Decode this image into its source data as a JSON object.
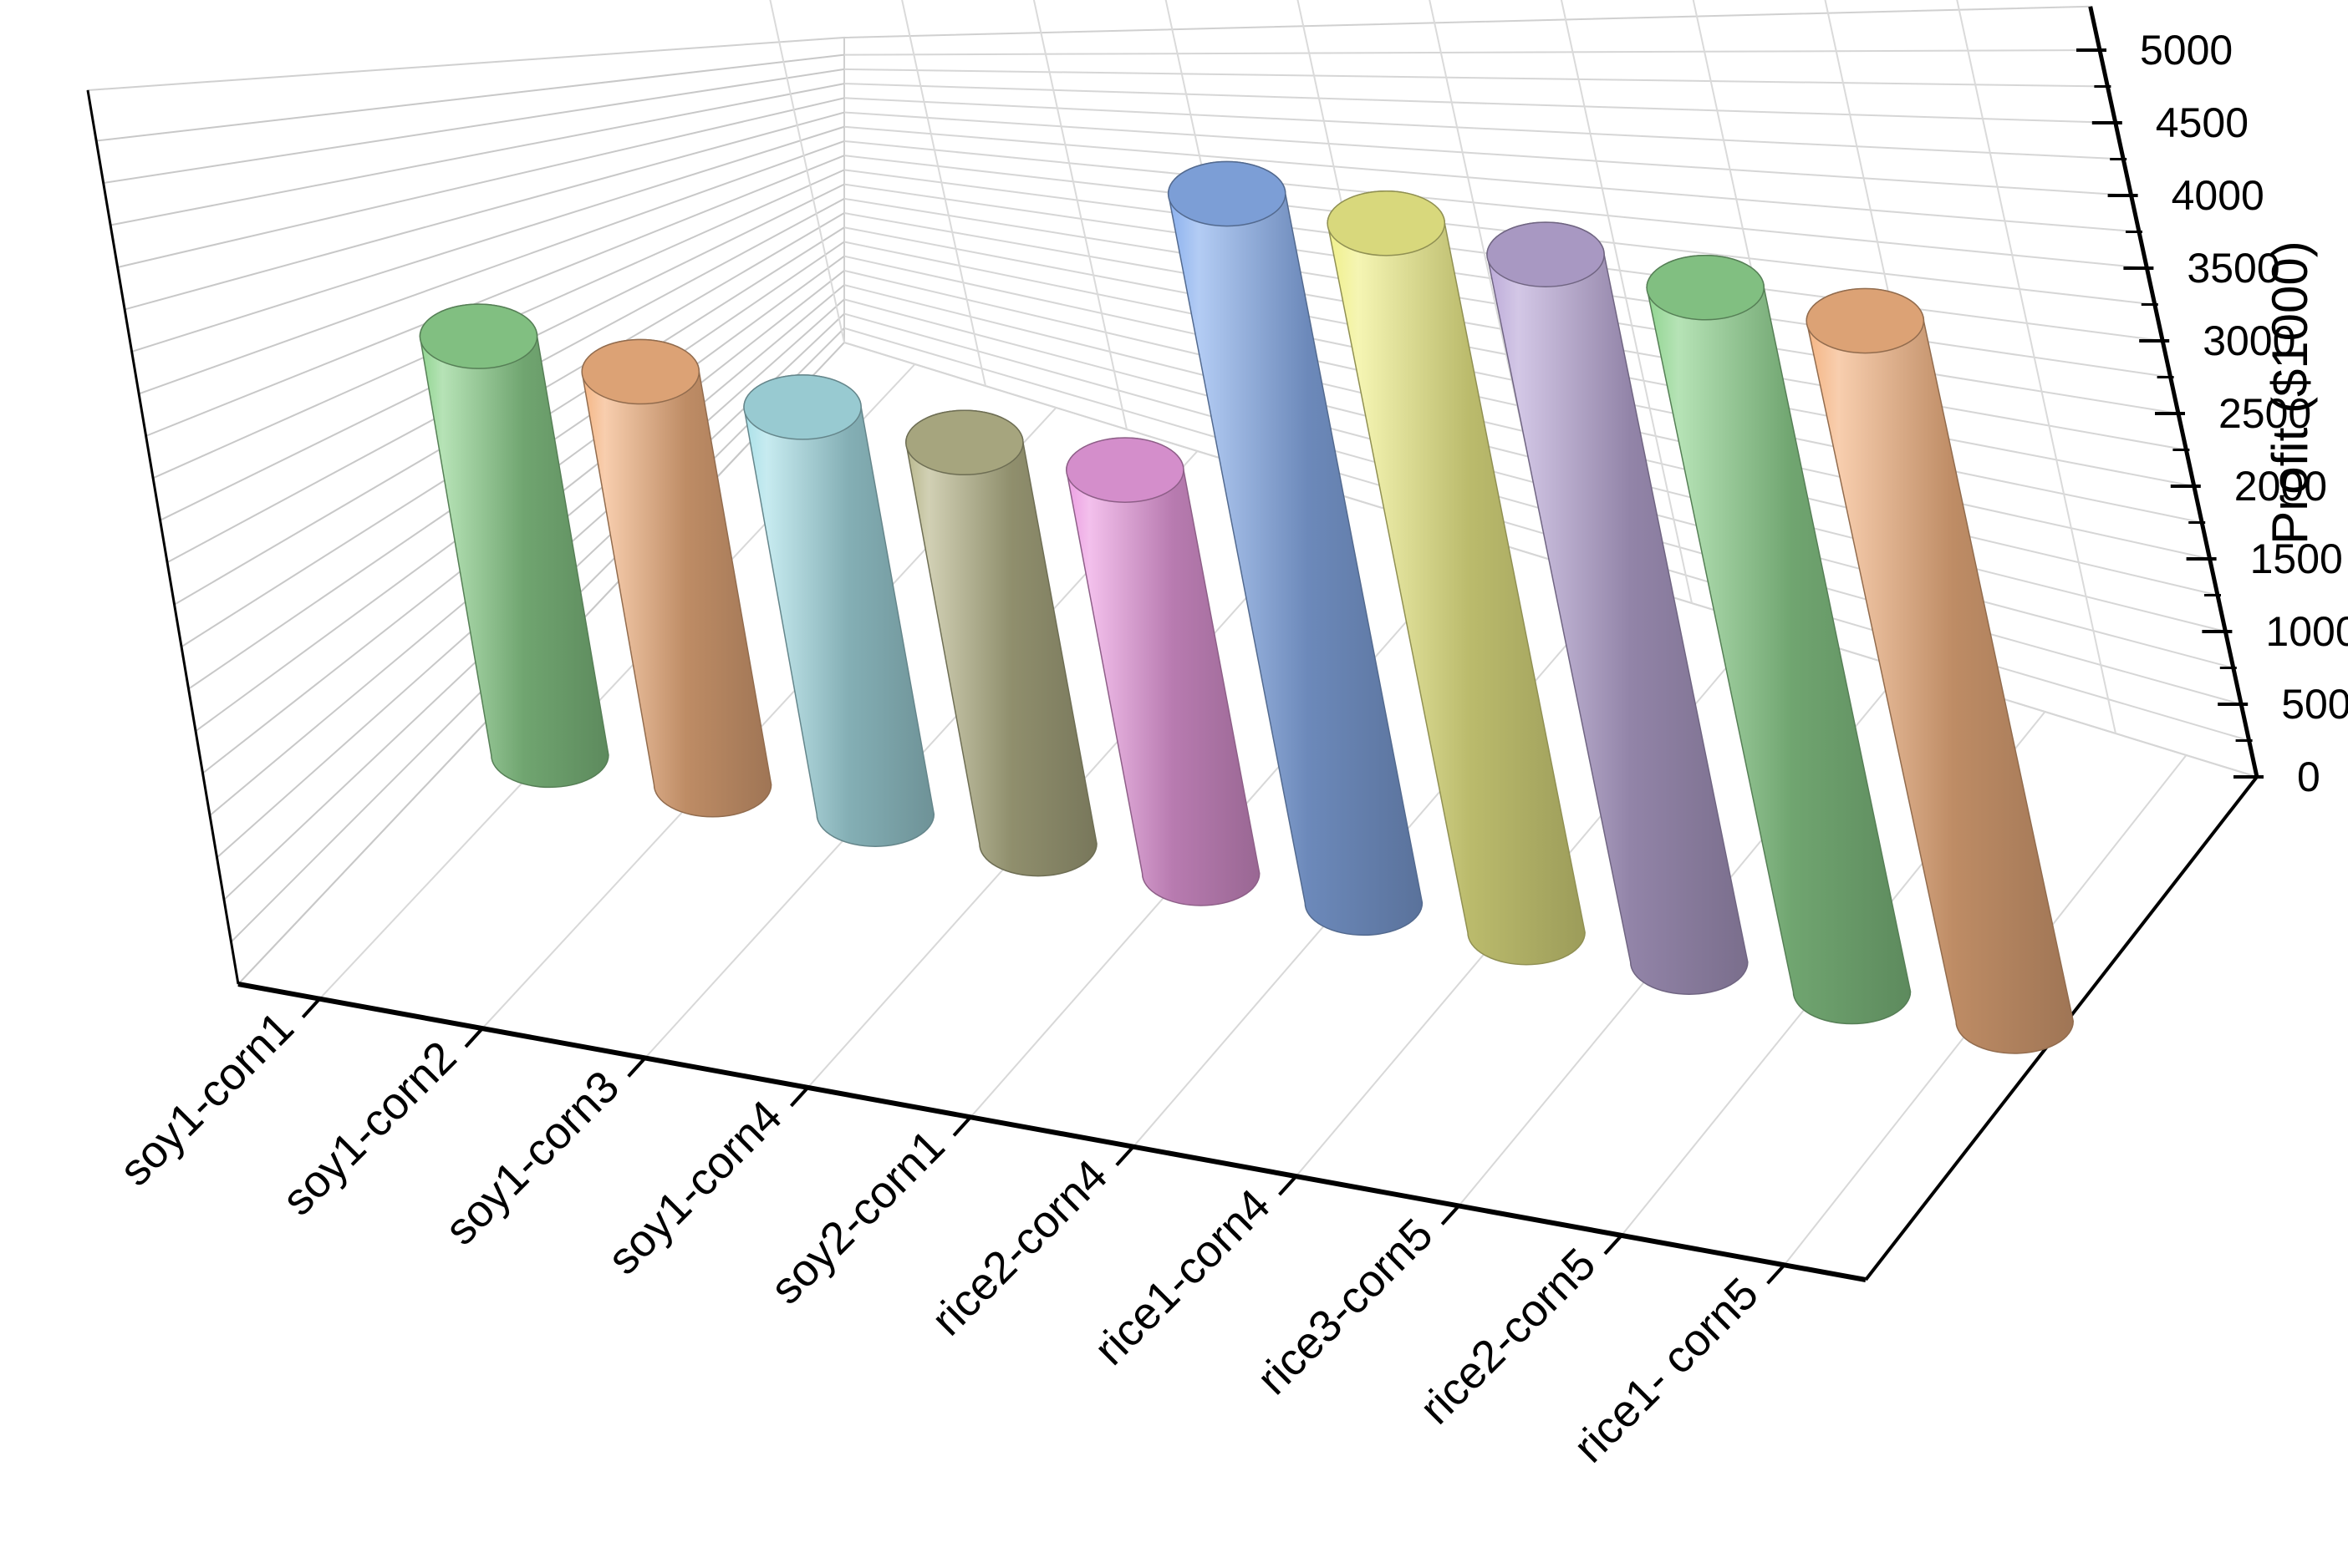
{
  "chart_data": {
    "type": "bar",
    "style": "3d-cylinder",
    "title": "",
    "xlabel": "",
    "ylabel": "Profit ($1000)",
    "ylim": [
      0,
      5000
    ],
    "yticks": [
      "0",
      "500",
      "1000",
      "1500",
      "2000",
      "2500",
      "3000",
      "3500",
      "4000",
      "4500",
      "5000"
    ],
    "categories": [
      "soy1-corn1",
      "soy1-corn2",
      "soy1-corn3",
      "soy1-corn4",
      "soy2-corn1",
      "rice2-corn4",
      "rice1-corn4",
      "rice3-corn5",
      "rice2-corn5",
      "rice1- corn5"
    ],
    "values": [
      2500,
      2500,
      2500,
      2500,
      2550,
      4550,
      4620,
      4680,
      4730,
      4780
    ],
    "colors": [
      "#8fd48f",
      "#f4b482",
      "#a9e0e8",
      "#b8b78c",
      "#ec9ee2",
      "#8ab0ee",
      "#f0f08a",
      "#bba9d8",
      "#8fd48f",
      "#f4b482"
    ],
    "grid": true,
    "legend": "none"
  }
}
